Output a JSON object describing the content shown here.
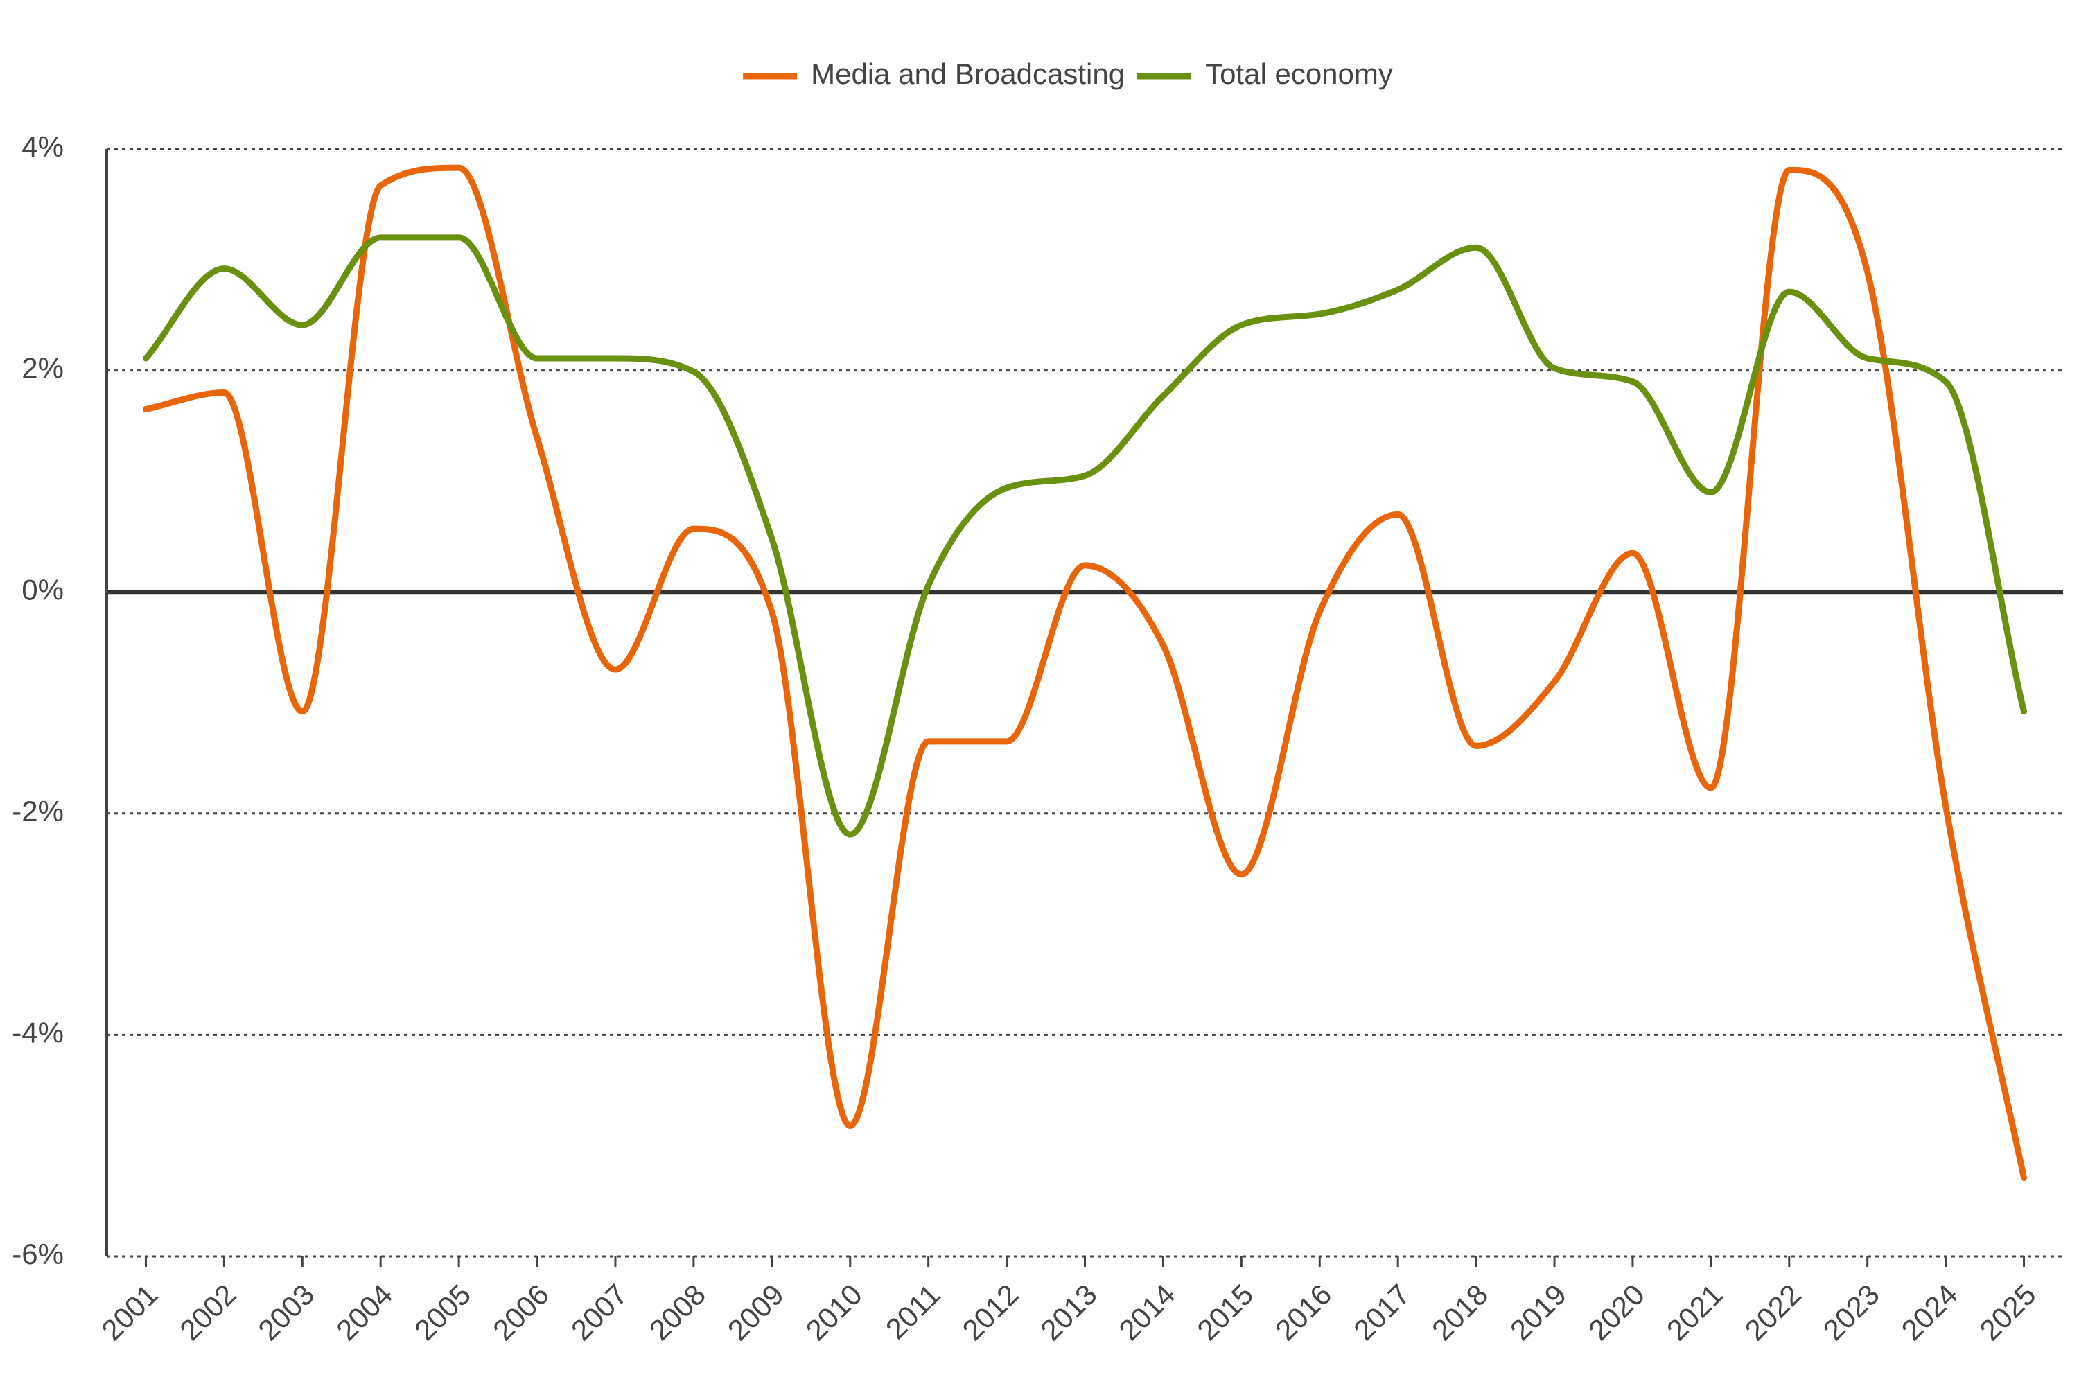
{
  "chart_data": {
    "type": "line",
    "categories": [
      "2001",
      "2002",
      "2003",
      "2004",
      "2005",
      "2006",
      "2007",
      "2008",
      "2009",
      "2010",
      "2011",
      "2012",
      "2013",
      "2014",
      "2015",
      "2016",
      "2017",
      "2018",
      "2019",
      "2020",
      "2021",
      "2022",
      "2023",
      "2024",
      "2025"
    ],
    "series": [
      {
        "name": "Media and Broadcasting",
        "color": "#e8650a",
        "values": [
          1.65,
          1.8,
          -1.08,
          3.67,
          3.83,
          1.39,
          -0.7,
          0.57,
          -0.18,
          -4.82,
          -1.35,
          -1.35,
          0.24,
          -0.48,
          -2.55,
          -0.18,
          0.7,
          -1.39,
          -0.81,
          0.35,
          -1.77,
          3.81,
          2.89,
          -1.93,
          -5.29
        ]
      },
      {
        "name": "Total economy",
        "color": "#6a9010",
        "values": [
          2.11,
          2.92,
          2.41,
          3.2,
          3.2,
          2.11,
          2.11,
          1.99,
          0.48,
          -2.19,
          0.06,
          0.94,
          1.05,
          1.77,
          2.41,
          2.51,
          2.73,
          3.11,
          2.02,
          1.9,
          0.9,
          2.71,
          2.11,
          1.9,
          -1.08
        ]
      }
    ],
    "ylim": [
      -6,
      4
    ],
    "yticks": [
      {
        "value": -6,
        "label": "-6%"
      },
      {
        "value": -4,
        "label": "-4%"
      },
      {
        "value": -2,
        "label": "-2%"
      },
      {
        "value": 0,
        "label": "0%"
      },
      {
        "value": 2,
        "label": "2%"
      },
      {
        "value": 4,
        "label": "4%"
      }
    ],
    "grid": true,
    "legend": "top"
  }
}
